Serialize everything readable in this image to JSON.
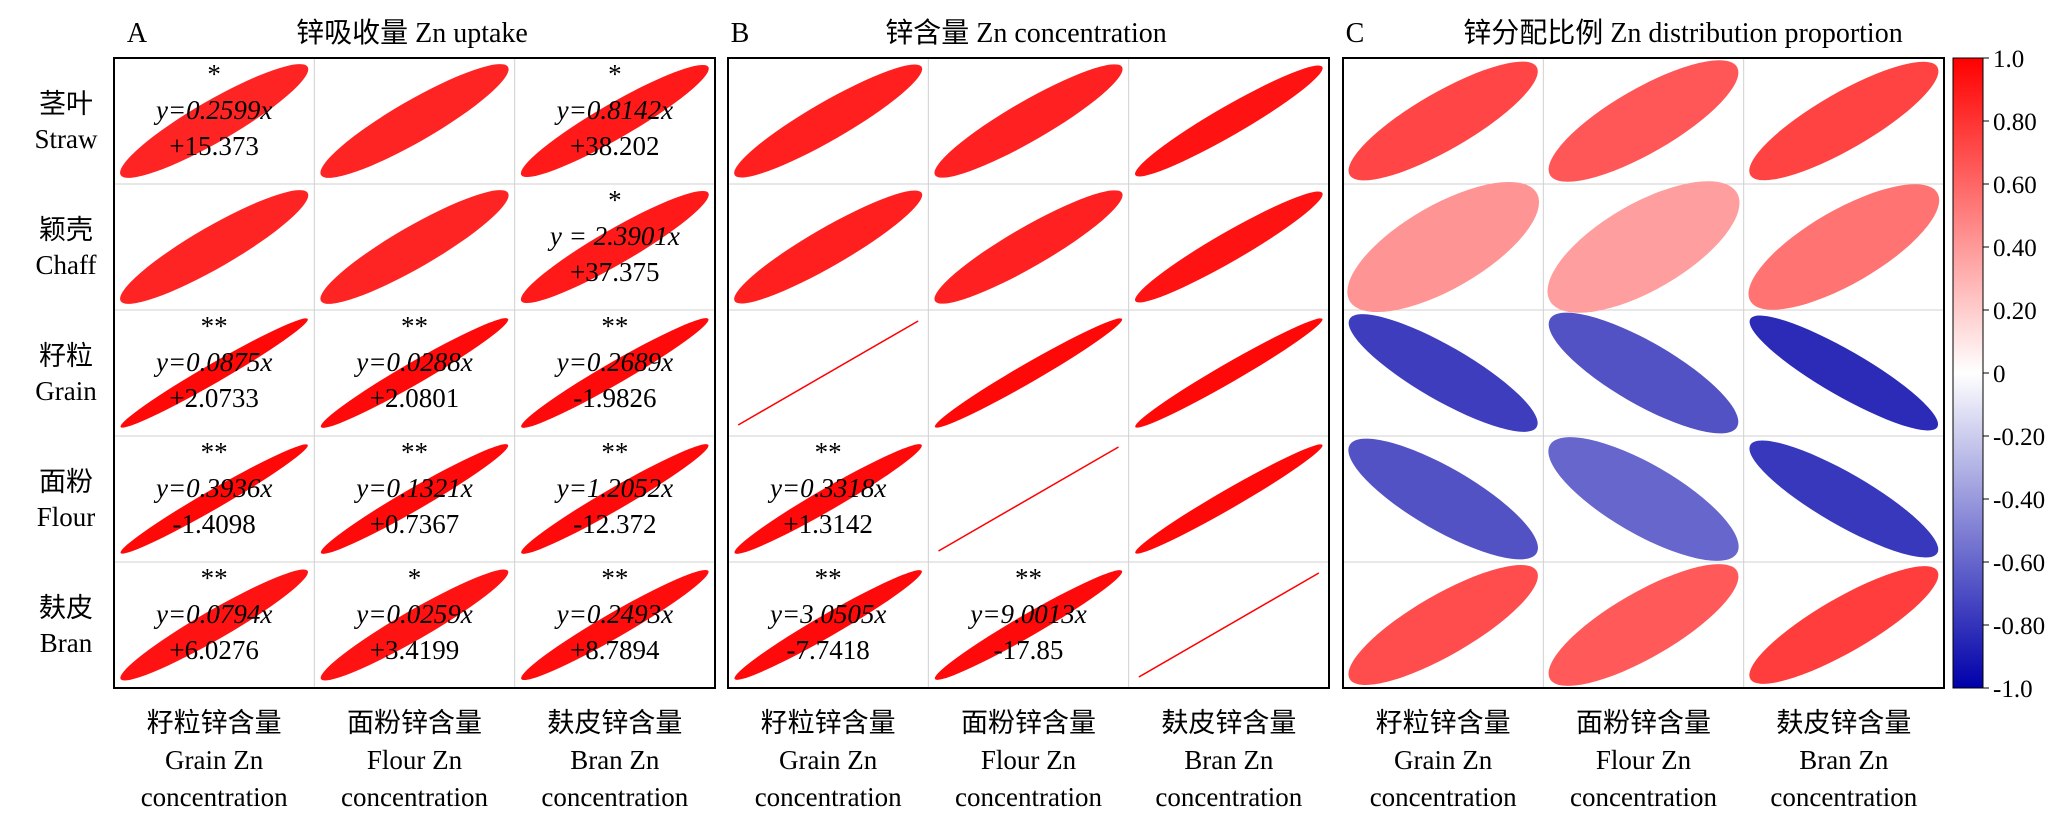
{
  "row_labels": [
    {
      "zh": "茎叶",
      "en": "Straw"
    },
    {
      "zh": "颖壳",
      "en": "Chaff"
    },
    {
      "zh": "籽粒",
      "en": "Grain"
    },
    {
      "zh": "面粉",
      "en": "Flour"
    },
    {
      "zh": "麸皮",
      "en": "Bran"
    }
  ],
  "chart_data": [
    {
      "type": "heatmap",
      "panel": "A",
      "title": "锌吸收量 Zn uptake",
      "rows": [
        "茎叶 Straw",
        "颖壳 Chaff",
        "籽粒 Grain",
        "面粉 Flour",
        "麸皮 Bran"
      ],
      "columns": [
        {
          "zh": "籽粒锌含量",
          "en1": "Grain Zn",
          "en2": "concentration"
        },
        {
          "zh": "面粉锌含量",
          "en1": "Flour Zn",
          "en2": "concentration"
        },
        {
          "zh": "麸皮锌含量",
          "en1": "Bran Zn",
          "en2": "concentration"
        }
      ],
      "values": [
        [
          0.86,
          0.86,
          0.9
        ],
        [
          0.86,
          0.86,
          0.9
        ],
        [
          0.97,
          0.96,
          0.96
        ],
        [
          0.97,
          0.96,
          0.96
        ],
        [
          0.93,
          0.93,
          0.95
        ]
      ],
      "significance": [
        [
          "*",
          "",
          "*"
        ],
        [
          "",
          "",
          "*"
        ],
        [
          "**",
          "**",
          "**"
        ],
        [
          "**",
          "**",
          "**"
        ],
        [
          "**",
          "*",
          "**"
        ]
      ],
      "equations": [
        [
          [
            "y=0.2599x",
            "+15.373"
          ],
          null,
          [
            "y=0.8142x",
            "+38.202"
          ]
        ],
        [
          null,
          null,
          [
            "y = 2.3901x",
            "+37.375"
          ]
        ],
        [
          [
            "y=0.0875x",
            "+2.0733"
          ],
          [
            "y=0.0288x",
            "+2.0801"
          ],
          [
            "y=0.2689x",
            "-1.9826"
          ]
        ],
        [
          [
            "y=0.3936x",
            "-1.4098"
          ],
          [
            "y=0.1321x",
            "+0.7367"
          ],
          [
            "y=1.2052x",
            "-12.372"
          ]
        ],
        [
          [
            "y=0.0794x",
            "+6.0276"
          ],
          [
            "y=0.0259x",
            "+3.4199"
          ],
          [
            "y=0.2493x",
            "+8.7894"
          ]
        ]
      ]
    },
    {
      "type": "heatmap",
      "panel": "B",
      "title": "锌含量 Zn concentration",
      "rows": [
        "茎叶 Straw",
        "颖壳 Chaff",
        "籽粒 Grain",
        "面粉 Flour",
        "麸皮 Bran"
      ],
      "columns": [
        {
          "zh": "籽粒锌含量",
          "en1": "Grain Zn",
          "en2": "concentration"
        },
        {
          "zh": "面粉锌含量",
          "en1": "Flour Zn",
          "en2": "concentration"
        },
        {
          "zh": "麸皮锌含量",
          "en1": "Bran Zn",
          "en2": "concentration"
        }
      ],
      "values": [
        [
          0.88,
          0.87,
          0.93
        ],
        [
          0.88,
          0.87,
          0.93
        ],
        [
          1.0,
          0.97,
          0.97
        ],
        [
          0.96,
          1.0,
          0.97
        ],
        [
          0.96,
          0.96,
          1.0
        ]
      ],
      "significance": [
        [
          "",
          "",
          ""
        ],
        [
          "",
          "",
          ""
        ],
        [
          "",
          "",
          ""
        ],
        [
          "**",
          "",
          ""
        ],
        [
          "**",
          "**",
          ""
        ]
      ],
      "equations": [
        [
          null,
          null,
          null
        ],
        [
          null,
          null,
          null
        ],
        [
          null,
          null,
          null
        ],
        [
          [
            "y=0.3318x",
            "+1.3142"
          ],
          null,
          null
        ],
        [
          [
            "y=3.0505x",
            "-7.7418"
          ],
          [
            "y=9.0013x",
            "-17.85"
          ],
          null
        ]
      ]
    },
    {
      "type": "heatmap",
      "panel": "C",
      "title": "锌分配比例 Zn distribution proportion",
      "rows": [
        "茎叶 Straw",
        "颖壳 Chaff",
        "籽粒 Grain",
        "面粉 Flour",
        "麸皮 Bran"
      ],
      "columns": [
        {
          "zh": "籽粒锌含量",
          "en1": "Grain Zn",
          "en2": "concentration"
        },
        {
          "zh": "面粉锌含量",
          "en1": "Flour Zn",
          "en2": "concentration"
        },
        {
          "zh": "麸皮锌含量",
          "en1": "Bran Zn",
          "en2": "concentration"
        }
      ],
      "values": [
        [
          0.73,
          0.66,
          0.74
        ],
        [
          0.42,
          0.38,
          0.55
        ],
        [
          -0.76,
          -0.68,
          -0.83
        ],
        [
          -0.68,
          -0.6,
          -0.78
        ],
        [
          0.7,
          0.65,
          0.76
        ]
      ],
      "significance": [
        [
          "",
          "",
          ""
        ],
        [
          "",
          "",
          ""
        ],
        [
          "",
          "",
          ""
        ],
        [
          "",
          "",
          ""
        ],
        [
          "",
          "",
          ""
        ]
      ],
      "equations": [
        [
          null,
          null,
          null
        ],
        [
          null,
          null,
          null
        ],
        [
          null,
          null,
          null
        ],
        [
          null,
          null,
          null
        ],
        [
          null,
          null,
          null
        ]
      ]
    }
  ],
  "colorbar": {
    "range": [
      -1.0,
      1.0
    ],
    "ticks": [
      "1.0",
      "0.80",
      "0.60",
      "0.40",
      "0.20",
      "0",
      "-0.20",
      "-0.40",
      "-0.60",
      "-0.80",
      "-1.0"
    ],
    "colors": {
      "positive": "#ff0000",
      "zero": "#ffffff",
      "negative": "#0000aa"
    }
  }
}
